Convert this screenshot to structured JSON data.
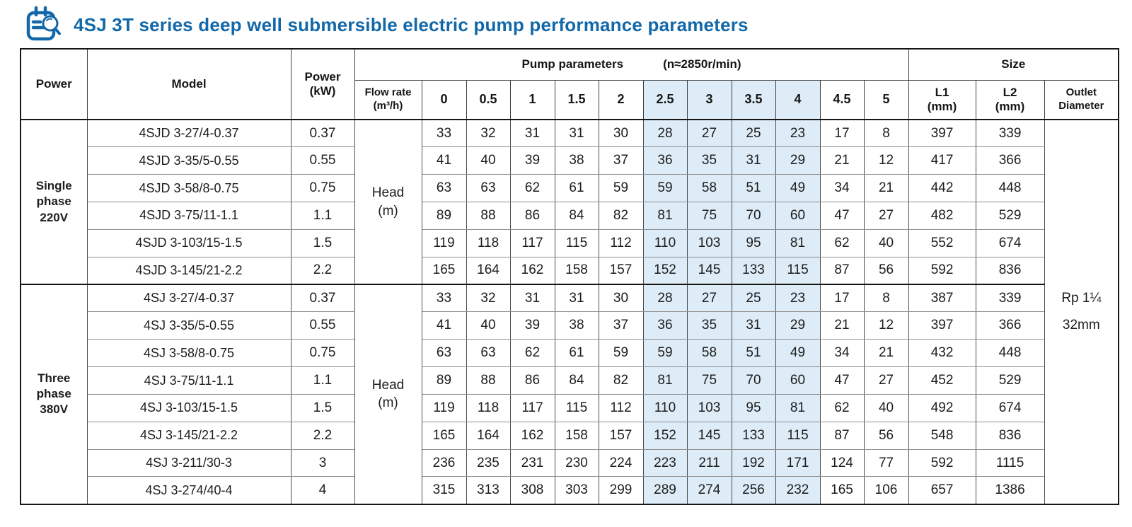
{
  "title": {
    "text": "4SJ 3T series deep well submersible electric pump performance parameters",
    "accent_color": "#1268a8"
  },
  "icons": {
    "title_icon": "clipboard-magnifier-icon"
  },
  "table": {
    "headers": {
      "power": "Power",
      "model": "Model",
      "power_kw": "Power\n(kW)",
      "pump_params": "Pump parameters",
      "pump_speed": "(n≈2850r/min)",
      "flow_rate": "Flow rate\n(m³/h)",
      "flow_values": [
        "0",
        "0.5",
        "1",
        "1.5",
        "2",
        "2.5",
        "3",
        "3.5",
        "4",
        "4.5",
        "5"
      ],
      "size": "Size",
      "l1": "L1\n(mm)",
      "l2": "L2\n(mm)",
      "outlet": "Outlet\nDiameter"
    },
    "head_label": "Head\n(m)",
    "outlet_value": "Rp 1¼\n32mm",
    "highlight_color": "#ddecf6",
    "highlight_flow_columns": [
      "2.5",
      "3",
      "3.5",
      "4"
    ],
    "highlight_flow_indices": [
      5,
      6,
      7,
      8
    ],
    "groups": [
      {
        "power": "Single\nphase\n220V",
        "rows": [
          {
            "model": "4SJD 3-27/4-0.37",
            "kw": "0.37",
            "heads": [
              33,
              32,
              31,
              31,
              30,
              28,
              27,
              25,
              23,
              17,
              8
            ],
            "l1": "397",
            "l2": "339"
          },
          {
            "model": "4SJD 3-35/5-0.55",
            "kw": "0.55",
            "heads": [
              41,
              40,
              39,
              38,
              37,
              36,
              35,
              31,
              29,
              21,
              12
            ],
            "l1": "417",
            "l2": "366"
          },
          {
            "model": "4SJD 3-58/8-0.75",
            "kw": "0.75",
            "heads": [
              63,
              63,
              62,
              61,
              59,
              59,
              58,
              51,
              49,
              34,
              21
            ],
            "l1": "442",
            "l2": "448"
          },
          {
            "model": "4SJD 3-75/11-1.1",
            "kw": "1.1",
            "heads": [
              89,
              88,
              86,
              84,
              82,
              81,
              75,
              70,
              60,
              47,
              27
            ],
            "l1": "482",
            "l2": "529"
          },
          {
            "model": "4SJD 3-103/15-1.5",
            "kw": "1.5",
            "heads": [
              119,
              118,
              117,
              115,
              112,
              110,
              103,
              95,
              81,
              62,
              40
            ],
            "l1": "552",
            "l2": "674"
          },
          {
            "model": "4SJD 3-145/21-2.2",
            "kw": "2.2",
            "heads": [
              165,
              164,
              162,
              158,
              157,
              152,
              145,
              133,
              115,
              87,
              56
            ],
            "l1": "592",
            "l2": "836"
          }
        ]
      },
      {
        "power": "Three\nphase\n380V",
        "rows": [
          {
            "model": "4SJ 3-27/4-0.37",
            "kw": "0.37",
            "heads": [
              33,
              32,
              31,
              31,
              30,
              28,
              27,
              25,
              23,
              17,
              8
            ],
            "l1": "387",
            "l2": "339"
          },
          {
            "model": "4SJ 3-35/5-0.55",
            "kw": "0.55",
            "heads": [
              41,
              40,
              39,
              38,
              37,
              36,
              35,
              31,
              29,
              21,
              12
            ],
            "l1": "397",
            "l2": "366"
          },
          {
            "model": "4SJ 3-58/8-0.75",
            "kw": "0.75",
            "heads": [
              63,
              63,
              62,
              61,
              59,
              59,
              58,
              51,
              49,
              34,
              21
            ],
            "l1": "432",
            "l2": "448"
          },
          {
            "model": "4SJ 3-75/11-1.1",
            "kw": "1.1",
            "heads": [
              89,
              88,
              86,
              84,
              82,
              81,
              75,
              70,
              60,
              47,
              27
            ],
            "l1": "452",
            "l2": "529"
          },
          {
            "model": "4SJ 3-103/15-1.5",
            "kw": "1.5",
            "heads": [
              119,
              118,
              117,
              115,
              112,
              110,
              103,
              95,
              81,
              62,
              40
            ],
            "l1": "492",
            "l2": "674"
          },
          {
            "model": "4SJ 3-145/21-2.2",
            "kw": "2.2",
            "heads": [
              165,
              164,
              162,
              158,
              157,
              152,
              145,
              133,
              115,
              87,
              56
            ],
            "l1": "548",
            "l2": "836"
          },
          {
            "model": "4SJ 3-211/30-3",
            "kw": "3",
            "heads": [
              236,
              235,
              231,
              230,
              224,
              223,
              211,
              192,
              171,
              124,
              77
            ],
            "l1": "592",
            "l2": "1115"
          },
          {
            "model": "4SJ 3-274/40-4",
            "kw": "4",
            "heads": [
              315,
              313,
              308,
              303,
              299,
              289,
              274,
              256,
              232,
              165,
              106
            ],
            "l1": "657",
            "l2": "1386"
          }
        ]
      }
    ]
  }
}
